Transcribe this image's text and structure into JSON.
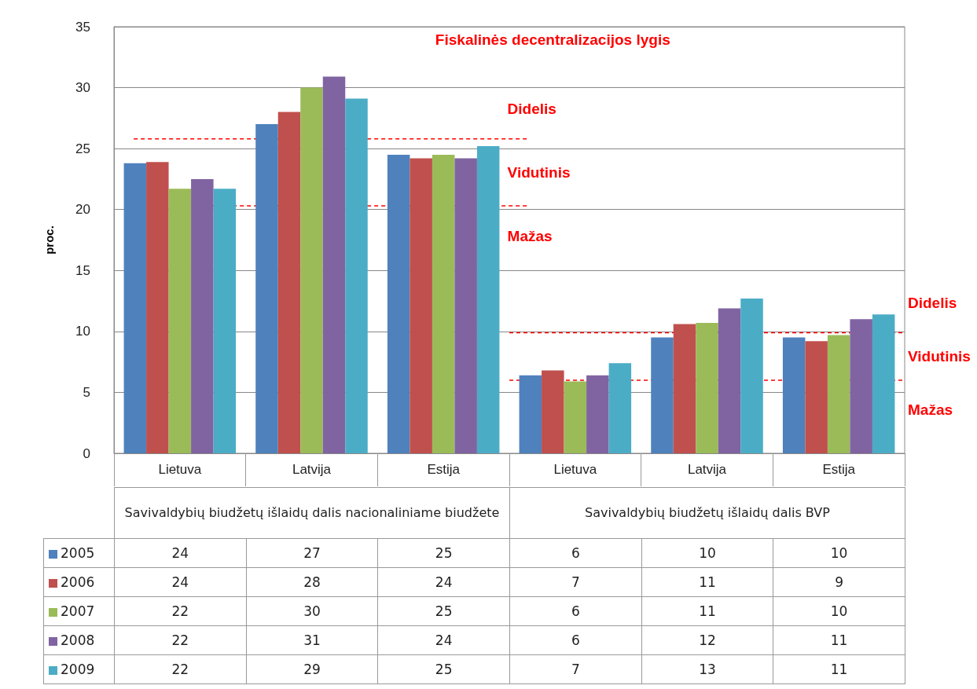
{
  "chart_data": {
    "type": "bar",
    "title": "Fiskalinės decentralizacijos lygis",
    "ylabel": "proc.",
    "categories": [
      "Lietuva",
      "Latvija",
      "Estija",
      "Lietuva",
      "Latvija",
      "Estija"
    ],
    "series": [
      {
        "name": "2005",
        "color": "#4f81bd",
        "values": [
          23.8,
          27.0,
          24.5,
          6.4,
          9.5,
          9.5
        ],
        "value_labels": [
          "24",
          "27",
          "25",
          "6",
          "10",
          "10"
        ]
      },
      {
        "name": "2006",
        "color": "#c0504d",
        "values": [
          23.9,
          28.0,
          24.2,
          6.8,
          10.6,
          9.2
        ],
        "value_labels": [
          "24",
          "28",
          "24",
          "7",
          "11",
          "9"
        ]
      },
      {
        "name": "2007",
        "color": "#9bbb59",
        "values": [
          21.7,
          30.0,
          24.5,
          5.9,
          10.7,
          9.7
        ],
        "value_labels": [
          "22",
          "30",
          "25",
          "6",
          "11",
          "10"
        ]
      },
      {
        "name": "2008",
        "color": "#8064a2",
        "values": [
          22.5,
          30.9,
          24.2,
          6.4,
          11.9,
          11.0
        ],
        "value_labels": [
          "22",
          "31",
          "24",
          "6",
          "12",
          "11"
        ]
      },
      {
        "name": "2009",
        "color": "#4bacc6",
        "values": [
          21.7,
          29.1,
          25.2,
          7.4,
          12.7,
          11.4
        ],
        "value_labels": [
          "22",
          "29",
          "25",
          "7",
          "13",
          "11"
        ]
      }
    ],
    "ylim": [
      0,
      35
    ],
    "yticks": [
      0,
      5,
      10,
      15,
      20,
      25,
      30,
      35
    ],
    "grid": "y",
    "legend": "bottom",
    "ref_lines": [
      {
        "axis": "y",
        "value": 25.8,
        "color": "#ff0000",
        "line_style": "dashed"
      },
      {
        "axis": "y",
        "value": 20.3,
        "color": "#ff0000",
        "line_style": "dashed"
      },
      {
        "axis": "y",
        "value": 9.9,
        "color": "#ff0000",
        "line_style": "dashed"
      },
      {
        "axis": "y",
        "value": 6.0,
        "color": "#ff0000",
        "line_style": "dashed"
      }
    ],
    "annotations": [
      "Savivaldybių biudžetų išlaidų dalis nacionaliniame biudžete",
      "Savivaldybių biudžetų išlaidų dalis BVP",
      "Didelis",
      "Vidutinis",
      "Mažas",
      "Didelis",
      "Vidutinis",
      "Mažas"
    ]
  }
}
